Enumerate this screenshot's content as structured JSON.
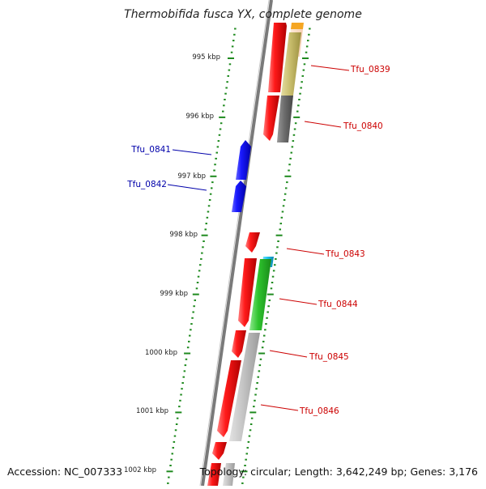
{
  "title": "Thermobifida fusca YX, complete genome",
  "accession": "Accession: NC_007333",
  "topology": "Topology: circular; Length: 3,642,249 bp; Genes: 3,176",
  "colors": {
    "backbone": "#7a7a7a",
    "tick": "#1f8a1f",
    "cds_red": "#ee1111",
    "cds_blue": "#1111ee",
    "label_red": "#cc0000",
    "label_blue": "#0000aa"
  },
  "ticks": [
    {
      "label": "995 kbp",
      "kbp": 995
    },
    {
      "label": "996 kbp",
      "kbp": 996
    },
    {
      "label": "997 kbp",
      "kbp": 997
    },
    {
      "label": "998 kbp",
      "kbp": 998
    },
    {
      "label": "999 kbp",
      "kbp": 999
    },
    {
      "label": "1000 kbp",
      "kbp": 1000
    },
    {
      "label": "1001 kbp",
      "kbp": 1001
    },
    {
      "label": "1002 kbp",
      "kbp": 1002
    }
  ],
  "gene_labels": [
    {
      "text": "Tfu_0839",
      "strand": "forward"
    },
    {
      "text": "Tfu_0840",
      "strand": "forward"
    },
    {
      "text": "Tfu_0841",
      "strand": "reverse"
    },
    {
      "text": "Tfu_0842",
      "strand": "reverse"
    },
    {
      "text": "Tfu_0843",
      "strand": "forward"
    },
    {
      "text": "Tfu_0844",
      "strand": "forward"
    },
    {
      "text": "Tfu_0845",
      "strand": "forward"
    },
    {
      "text": "Tfu_0846",
      "strand": "forward"
    }
  ]
}
